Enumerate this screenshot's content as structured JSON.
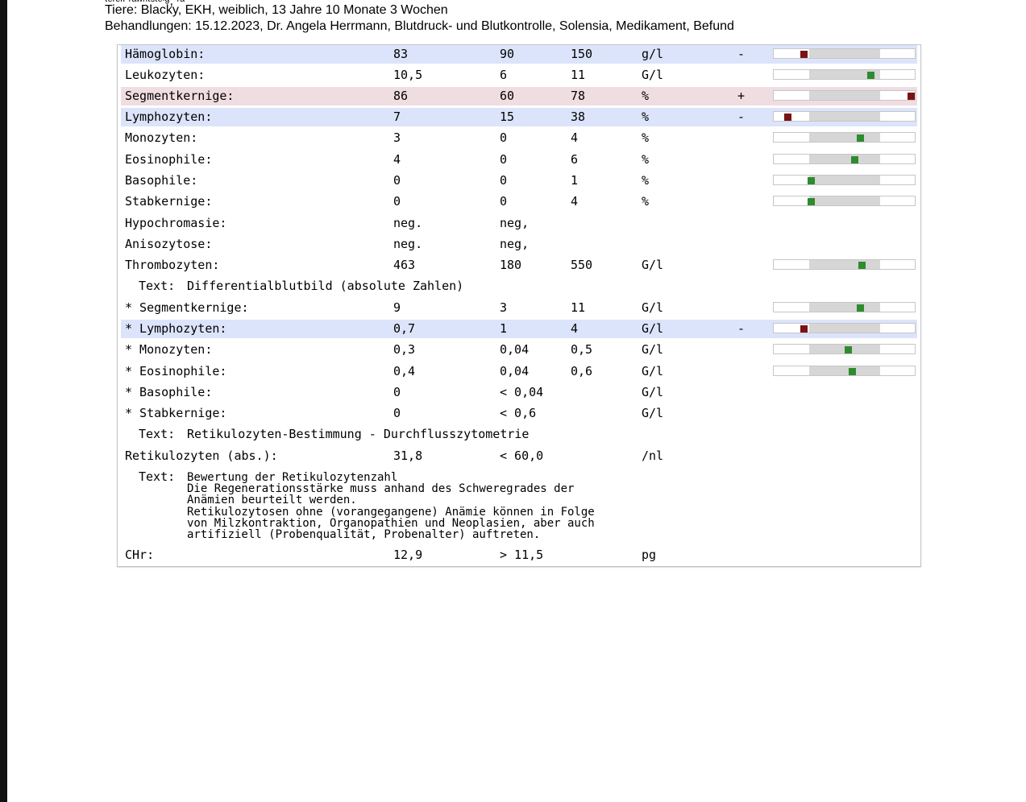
{
  "header": {
    "line1": "Tiere: Blacky, EKH, weiblich, 13 Jahre 10 Monate 3 Wochen",
    "line2": "Behandlungen: 15.12.2023, Dr. Angela Herrmann, Blutdruck- und Blutkontrolle, Solensia, Medikament, Befund"
  },
  "results": [
    {
      "name": "Hämoglobin:",
      "value": "83",
      "ref_low": "90",
      "ref_high": "150",
      "unit": "g/l",
      "flag": "-",
      "status": "low",
      "gauge": true
    },
    {
      "name": "Leukozyten:",
      "value": "10,5",
      "ref_low": "6",
      "ref_high": "11",
      "unit": "G/l",
      "flag": "",
      "status": "normal",
      "gauge": true
    },
    {
      "name": "Segmentkernige:",
      "value": "86",
      "ref_low": "60",
      "ref_high": "78",
      "unit": "%",
      "flag": "+",
      "status": "high",
      "gauge": true
    },
    {
      "name": "Lymphozyten:",
      "value": "7",
      "ref_low": "15",
      "ref_high": "38",
      "unit": "%",
      "flag": "-",
      "status": "low",
      "gauge": true
    },
    {
      "name": "Monozyten:",
      "value": "3",
      "ref_low": "0",
      "ref_high": "4",
      "unit": "%",
      "flag": "",
      "status": "normal",
      "gauge": true
    },
    {
      "name": "Eosinophile:",
      "value": "4",
      "ref_low": "0",
      "ref_high": "6",
      "unit": "%",
      "flag": "",
      "status": "normal",
      "gauge": true
    },
    {
      "name": "Basophile:",
      "value": "0",
      "ref_low": "0",
      "ref_high": "1",
      "unit": "%",
      "flag": "",
      "status": "normal",
      "gauge": true
    },
    {
      "name": "Stabkernige:",
      "value": "0",
      "ref_low": "0",
      "ref_high": "4",
      "unit": "%",
      "flag": "",
      "status": "normal",
      "gauge": true
    },
    {
      "name": "Hypochromasie:",
      "value": "neg.",
      "ref_low": "neg,",
      "ref_high": "",
      "unit": "",
      "flag": "",
      "status": "normal",
      "gauge": false
    },
    {
      "name": "Anisozytose:",
      "value": "neg.",
      "ref_low": "neg,",
      "ref_high": "",
      "unit": "",
      "flag": "",
      "status": "normal",
      "gauge": false
    },
    {
      "name": "Thrombozyten:",
      "value": "463",
      "ref_low": "180",
      "ref_high": "550",
      "unit": "G/l",
      "flag": "",
      "status": "normal",
      "gauge": true
    },
    {
      "text_label": "Text:",
      "text": "Differentialblutbild (absolute Zahlen)"
    },
    {
      "name": "* Segmentkernige:",
      "value": "9",
      "ref_low": "3",
      "ref_high": "11",
      "unit": "G/l",
      "flag": "",
      "status": "normal",
      "gauge": true
    },
    {
      "name": "* Lymphozyten:",
      "value": "0,7",
      "ref_low": "1",
      "ref_high": "4",
      "unit": "G/l",
      "flag": "-",
      "status": "low",
      "gauge": true
    },
    {
      "name": "* Monozyten:",
      "value": "0,3",
      "ref_low": "0,04",
      "ref_high": "0,5",
      "unit": "G/l",
      "flag": "",
      "status": "normal",
      "gauge": true
    },
    {
      "name": "* Eosinophile:",
      "value": "0,4",
      "ref_low": "0,04",
      "ref_high": "0,6",
      "unit": "G/l",
      "flag": "",
      "status": "normal",
      "gauge": true
    },
    {
      "name": "* Basophile:",
      "value": "0",
      "ref_low": "< 0,04",
      "ref_high": "",
      "unit": "G/l",
      "flag": "",
      "status": "normal",
      "gauge": false
    },
    {
      "name": "* Stabkernige:",
      "value": "0",
      "ref_low": "< 0,6",
      "ref_high": "",
      "unit": "G/l",
      "flag": "",
      "status": "normal",
      "gauge": false
    },
    {
      "text_label": "Text:",
      "text": "Retikulozyten-Bestimmung - Durchflusszytometrie"
    },
    {
      "name": "Retikulozyten (abs.):",
      "value": "31,8",
      "ref_low": "< 60,0",
      "ref_high": "",
      "unit": "/nl",
      "flag": "",
      "status": "normal",
      "gauge": false
    },
    {
      "text_label": "Text:",
      "text_lines": [
        "Bewertung der Retikulozytenzahl",
        "Die Regenerationsstärke muss anhand des Schweregrades der",
        "Anämien beurteilt werden.",
        "Retikulozytosen ohne (vorangegangene) Anämie können in Folge",
        "von Milzkontraktion, Organopathien und Neoplasien, aber auch",
        "artifiziell (Probenqualität, Probenalter) auftreten."
      ]
    },
    {
      "name": "CHr:",
      "value": "12,9",
      "ref_low": "> 11,5",
      "ref_high": "",
      "unit": "pg",
      "flag": "",
      "status": "normal",
      "gauge": false
    }
  ],
  "gauge_positions": [
    0.2,
    0.7,
    1.0,
    0.08,
    0.62,
    0.58,
    0.25,
    0.25,
    null,
    null,
    0.63,
    null,
    0.62,
    0.2,
    0.53,
    0.56,
    null,
    null,
    null,
    null,
    null,
    null
  ],
  "colors": {
    "low_row_bg": "#dbe4fa",
    "high_row_bg": "#f0dde1",
    "marker_ok": "#2e8b2e",
    "marker_bad": "#7a1414",
    "gauge_band": "#d6d6d6"
  }
}
